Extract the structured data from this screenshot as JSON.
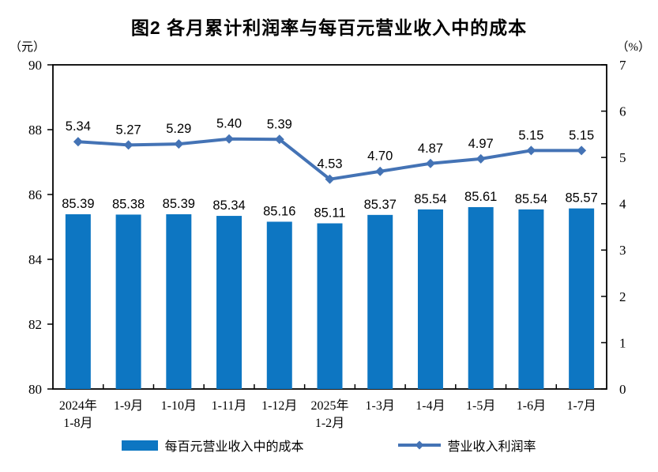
{
  "title": "图2 各月累计利润率与每百元营业收入中的成本",
  "left_axis": {
    "unit": "（元）",
    "min": 80,
    "max": 90,
    "ticks": [
      90,
      88,
      86,
      84,
      82,
      80
    ]
  },
  "right_axis": {
    "unit": "（%）",
    "min": 0,
    "max": 7,
    "ticks": [
      7,
      6,
      5,
      4,
      3,
      2,
      1,
      0
    ]
  },
  "colors": {
    "bar": "#0d76c2",
    "line": "#4473b5",
    "axis": "#000000",
    "text": "#000000"
  },
  "legend": {
    "items": [
      {
        "label": "每百元营业收入中的成本",
        "type": "bar"
      },
      {
        "label": "营业收入利润率",
        "type": "line"
      }
    ]
  },
  "chart_data": {
    "type": "combo-bar-line",
    "title": "图2 各月累计利润率与每百元营业收入中的成本",
    "categories": [
      [
        "2024年",
        "1-8月"
      ],
      [
        "1-9月"
      ],
      [
        "1-10月"
      ],
      [
        "1-11月"
      ],
      [
        "1-12月"
      ],
      [
        "2025年",
        "1-2月"
      ],
      [
        "1-3月"
      ],
      [
        "1-4月"
      ],
      [
        "1-5月"
      ],
      [
        "1-6月"
      ],
      [
        "1-7月"
      ]
    ],
    "series": [
      {
        "name": "每百元营业收入中的成本",
        "type": "bar",
        "axis": "left",
        "unit": "元",
        "values": [
          85.39,
          85.38,
          85.39,
          85.34,
          85.16,
          85.11,
          85.37,
          85.54,
          85.61,
          85.54,
          85.57
        ]
      },
      {
        "name": "营业收入利润率",
        "type": "line",
        "axis": "right",
        "unit": "%",
        "values": [
          5.34,
          5.27,
          5.29,
          5.4,
          5.39,
          4.53,
          4.7,
          4.87,
          4.97,
          5.15,
          5.15
        ]
      }
    ],
    "left_ylim": [
      80,
      90
    ],
    "right_ylim": [
      0,
      7
    ],
    "grid": false,
    "legend_position": "bottom",
    "data_labels": true
  }
}
